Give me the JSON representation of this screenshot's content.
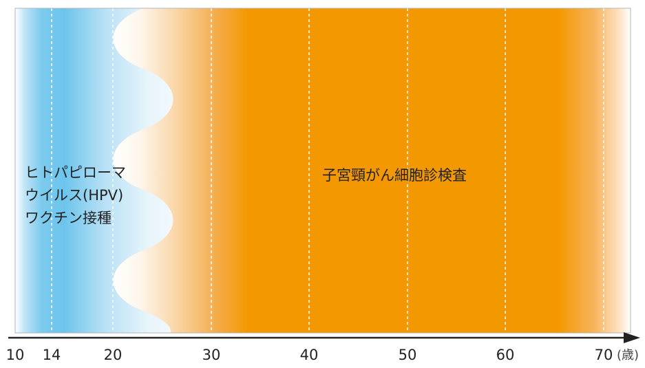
{
  "vaccine_zone": {
    "label_lines": [
      "ヒトパピローマ",
      "ウイルス(HPV)",
      "ワクチン接種"
    ],
    "color": "#6cc4ec"
  },
  "screening_zone": {
    "label": "子宮頸がん細胞診検査",
    "color": "#f39800"
  },
  "axis": {
    "ticks": [
      "10",
      "14",
      "20",
      "30",
      "40",
      "50",
      "60",
      "70"
    ],
    "unit": "(歳)"
  }
}
